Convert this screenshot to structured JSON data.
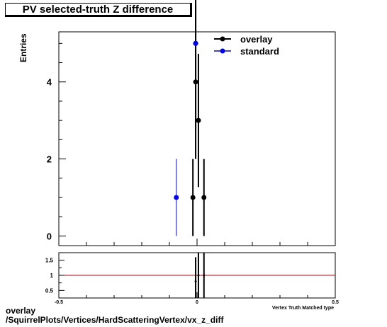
{
  "chart_data": [
    {
      "type": "scatter",
      "title": "PV selected-truth Z difference",
      "ylabel": "Entries",
      "xlim": [
        -0.5,
        0.5
      ],
      "ylim": [
        -0.25,
        5.3
      ],
      "yticks": [
        0,
        2,
        4
      ],
      "legend": {
        "placement": "top-right"
      },
      "series": [
        {
          "name": "overlay",
          "color": "#000000",
          "points": [
            {
              "x": -0.015,
              "y": 1,
              "err": 1
            },
            {
              "x": -0.005,
              "y": 5,
              "err": 2.24
            },
            {
              "x": 0.005,
              "y": 3,
              "err": 1.73
            },
            {
              "x": 0.025,
              "y": 1,
              "err": 1
            }
          ]
        },
        {
          "name": "standard",
          "color": "#0000ff",
          "points": [
            {
              "x": -0.075,
              "y": 1,
              "err": 1
            },
            {
              "x": -0.005,
              "y": 5,
              "err": 2.24
            }
          ]
        }
      ],
      "hidden_point": {
        "series": "overlay",
        "x": -0.005,
        "y": 4,
        "err": 2
      }
    },
    {
      "type": "scatter",
      "xlabel": "Vertex Truth Matched type",
      "xlim": [
        -0.5,
        0.5
      ],
      "ylim": [
        0.25,
        1.75
      ],
      "xticks": [
        {
          "v": -0.5,
          "label": "-0.5"
        },
        {
          "v": 0,
          "label": "0"
        },
        {
          "v": 0.5,
          "label": "0.5"
        }
      ],
      "yticks": [
        {
          "v": 0.5,
          "label": "0.5"
        },
        {
          "v": 1,
          "label": "1"
        },
        {
          "v": 1.5,
          "label": "1.5"
        }
      ],
      "reference_line": {
        "y": 1,
        "color": "#cc0000"
      },
      "series": [
        {
          "name": "overlay",
          "color": "#000000",
          "points": [
            {
              "x": -0.005,
              "y": 0.8,
              "err": 0.8
            },
            {
              "x": 0.005,
              "y": 1.0,
              "err": 1.5
            },
            {
              "x": 0.025,
              "y": 1.0,
              "err": 1.5
            }
          ]
        }
      ]
    }
  ],
  "footer": {
    "line1": "overlay",
    "line2": "/SquirrelPlots/Vertices/HardScatteringVertex/vx_z_diff"
  }
}
